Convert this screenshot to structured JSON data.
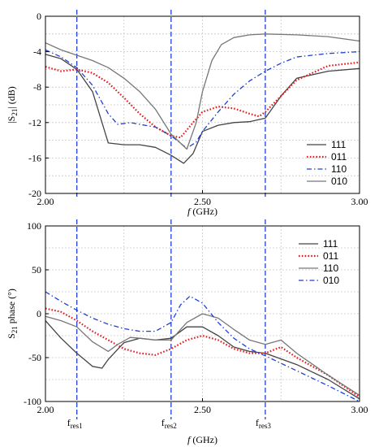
{
  "colors": {
    "gray": "#777777",
    "dark": "#444444",
    "red": "#e41a1c",
    "blue": "#1f3fd8",
    "grid": "#c8c8c8",
    "resonance": "#1f3fd8"
  },
  "resonances": [
    {
      "label": "f",
      "sub": "res1",
      "x": 2.1
    },
    {
      "label": "f",
      "sub": "res2",
      "x": 2.4
    },
    {
      "label": "f",
      "sub": "res3",
      "x": 2.7
    }
  ],
  "chart_data": [
    {
      "type": "line",
      "xlabel_f": "f",
      "xlabel_rest": " (GHz)",
      "ylabel": "|S",
      "ylabel_sub": "21",
      "ylabel_rest": "| (dB)",
      "xlim": [
        2.0,
        3.0
      ],
      "ylim": [
        -20,
        0
      ],
      "x_ticks": [
        "2.00",
        "2.50",
        "3.00"
      ],
      "x_tick_values": [
        2.0,
        2.5,
        3.0
      ],
      "y_ticks": [
        "0",
        "-4",
        "-8",
        "-12",
        "-16",
        "-20"
      ],
      "y_tick_values": [
        0,
        -4,
        -8,
        -12,
        -16,
        -20
      ],
      "legend_position": "bottom-right",
      "series": [
        {
          "name": "111",
          "color": "#444444",
          "style": "solid",
          "x": [
            2.0,
            2.05,
            2.1,
            2.15,
            2.18,
            2.2,
            2.25,
            2.3,
            2.35,
            2.4,
            2.44,
            2.47,
            2.5,
            2.55,
            2.6,
            2.65,
            2.7,
            2.75,
            2.8,
            2.9,
            3.0
          ],
          "y": [
            -4.3,
            -4.8,
            -6.0,
            -8.5,
            -12.0,
            -14.3,
            -14.5,
            -14.5,
            -14.8,
            -15.7,
            -16.6,
            -15.5,
            -13.0,
            -12.3,
            -12.0,
            -11.9,
            -11.5,
            -9.0,
            -7.0,
            -6.2,
            -5.9
          ]
        },
        {
          "name": "011",
          "color": "#e41a1c",
          "style": "dotted",
          "x": [
            2.0,
            2.05,
            2.1,
            2.15,
            2.2,
            2.25,
            2.3,
            2.35,
            2.4,
            2.43,
            2.47,
            2.5,
            2.55,
            2.6,
            2.65,
            2.68,
            2.7,
            2.75,
            2.8,
            2.9,
            3.0
          ],
          "y": [
            -5.7,
            -6.2,
            -6.0,
            -6.4,
            -7.5,
            -9.2,
            -11.0,
            -12.5,
            -13.5,
            -13.7,
            -12.0,
            -10.8,
            -10.2,
            -10.4,
            -11.0,
            -11.3,
            -10.8,
            -9.0,
            -7.2,
            -5.6,
            -5.2
          ]
        },
        {
          "name": "110",
          "color": "#1f3fd8",
          "style": "dashdot",
          "x": [
            2.0,
            2.05,
            2.1,
            2.15,
            2.2,
            2.23,
            2.27,
            2.3,
            2.35,
            2.4,
            2.45,
            2.48,
            2.5,
            2.55,
            2.6,
            2.65,
            2.7,
            2.75,
            2.8,
            2.9,
            3.0
          ],
          "y": [
            -3.8,
            -4.6,
            -5.8,
            -7.8,
            -11.0,
            -12.2,
            -12.0,
            -12.2,
            -12.5,
            -13.5,
            -14.9,
            -14.2,
            -13.0,
            -10.8,
            -8.8,
            -7.3,
            -6.2,
            -5.3,
            -4.6,
            -4.2,
            -4.0
          ]
        },
        {
          "name": "010",
          "color": "#777777",
          "style": "solid",
          "x": [
            2.0,
            2.05,
            2.1,
            2.15,
            2.2,
            2.25,
            2.3,
            2.35,
            2.4,
            2.45,
            2.48,
            2.5,
            2.53,
            2.56,
            2.6,
            2.65,
            2.7,
            2.8,
            2.9,
            3.0
          ],
          "y": [
            -3.0,
            -3.8,
            -4.4,
            -5.0,
            -5.8,
            -7.0,
            -8.5,
            -10.5,
            -13.3,
            -15.0,
            -12.0,
            -8.5,
            -5.0,
            -3.2,
            -2.4,
            -2.1,
            -2.0,
            -2.1,
            -2.3,
            -2.8
          ]
        }
      ]
    },
    {
      "type": "line",
      "xlabel_f": "f",
      "xlabel_rest": " (GHz)",
      "ylabel": "S",
      "ylabel_sub": "21",
      "ylabel_rest": " phase (°)",
      "xlim": [
        2.0,
        3.0
      ],
      "ylim": [
        -100,
        100
      ],
      "x_ticks": [
        "2.00",
        "2.50",
        "3.00"
      ],
      "x_tick_values": [
        2.0,
        2.5,
        3.0
      ],
      "y_ticks": [
        "100",
        "50",
        "0",
        "-50",
        "-100"
      ],
      "y_tick_values": [
        100,
        50,
        0,
        -50,
        -100
      ],
      "legend_position": "top-right",
      "series": [
        {
          "name": "111",
          "color": "#444444",
          "style": "solid",
          "x": [
            2.0,
            2.05,
            2.1,
            2.15,
            2.18,
            2.2,
            2.25,
            2.3,
            2.35,
            2.4,
            2.45,
            2.5,
            2.55,
            2.6,
            2.65,
            2.7,
            2.8,
            2.9,
            3.0
          ],
          "y": [
            -8,
            -28,
            -45,
            -60,
            -62,
            -52,
            -33,
            -28,
            -30,
            -28,
            -15,
            -15,
            -25,
            -38,
            -43,
            -45,
            -58,
            -75,
            -97
          ]
        },
        {
          "name": "011",
          "color": "#e41a1c",
          "style": "dotted",
          "x": [
            2.0,
            2.05,
            2.1,
            2.15,
            2.2,
            2.25,
            2.3,
            2.35,
            2.4,
            2.45,
            2.5,
            2.55,
            2.6,
            2.65,
            2.7,
            2.75,
            2.8,
            2.9,
            3.0
          ],
          "y": [
            6,
            2,
            -8,
            -20,
            -30,
            -40,
            -45,
            -47,
            -40,
            -30,
            -25,
            -30,
            -40,
            -45,
            -45,
            -38,
            -50,
            -70,
            -95
          ]
        },
        {
          "name": "110",
          "color": "#777777",
          "style": "solid",
          "x": [
            2.0,
            2.05,
            2.1,
            2.15,
            2.2,
            2.23,
            2.27,
            2.3,
            2.35,
            2.4,
            2.45,
            2.5,
            2.55,
            2.6,
            2.65,
            2.7,
            2.75,
            2.8,
            2.9,
            3.0
          ],
          "y": [
            -3,
            -8,
            -15,
            -32,
            -43,
            -35,
            -27,
            -28,
            -30,
            -30,
            -10,
            0,
            -5,
            -18,
            -30,
            -35,
            -30,
            -45,
            -70,
            -93
          ]
        },
        {
          "name": "010",
          "color": "#1f3fd8",
          "style": "dashdot",
          "x": [
            2.0,
            2.05,
            2.1,
            2.15,
            2.2,
            2.25,
            2.3,
            2.35,
            2.4,
            2.43,
            2.46,
            2.5,
            2.55,
            2.6,
            2.65,
            2.7,
            2.8,
            2.9,
            3.0
          ],
          "y": [
            25,
            14,
            4,
            -5,
            -12,
            -17,
            -20,
            -20,
            -10,
            10,
            20,
            12,
            -10,
            -28,
            -40,
            -48,
            -65,
            -82,
            -100
          ]
        }
      ]
    }
  ]
}
